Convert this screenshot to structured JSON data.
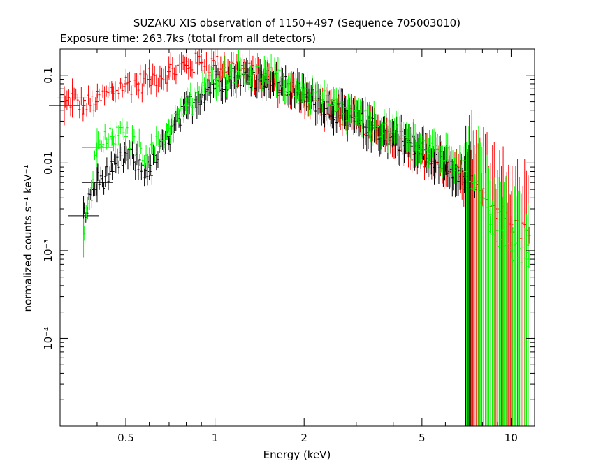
{
  "chart_data": {
    "type": "scatter",
    "title": "SUZAKU XIS observation of 1150+497 (Sequence 705003010)",
    "subtitle": "Exposure time: 263.7ks (total from all detectors)",
    "xlabel": "Energy (keV)",
    "ylabel": "normalized counts s⁻¹ keV⁻¹",
    "x_scale": "log",
    "y_scale": "log",
    "xlim": [
      0.3,
      12
    ],
    "ylim": [
      1e-05,
      0.2
    ],
    "x_ticks": [
      {
        "value": 0.5,
        "label": "0.5"
      },
      {
        "value": 1,
        "label": "1"
      },
      {
        "value": 2,
        "label": "2"
      },
      {
        "value": 5,
        "label": "5"
      },
      {
        "value": 10,
        "label": "10"
      }
    ],
    "y_ticks": [
      {
        "value": 0.1,
        "label": "0.1"
      },
      {
        "value": 0.01,
        "label": "0.01"
      },
      {
        "value": 0.001,
        "label": "10⁻³"
      },
      {
        "value": 0.0001,
        "label": "10⁻⁴"
      }
    ],
    "grid": false,
    "series": [
      {
        "color": "#ff0000",
        "points": [
          [
            0.31,
            0.045
          ],
          [
            0.33,
            0.055
          ],
          [
            0.36,
            0.045
          ],
          [
            0.4,
            0.05
          ],
          [
            0.45,
            0.065
          ],
          [
            0.5,
            0.08
          ],
          [
            0.55,
            0.08
          ],
          [
            0.6,
            0.09
          ],
          [
            0.7,
            0.11
          ],
          [
            0.8,
            0.13
          ],
          [
            0.9,
            0.14
          ],
          [
            1.0,
            0.13
          ],
          [
            1.2,
            0.12
          ],
          [
            1.5,
            0.09
          ],
          [
            2.0,
            0.055
          ],
          [
            2.5,
            0.04
          ],
          [
            3.0,
            0.03
          ],
          [
            4.0,
            0.02
          ],
          [
            5.0,
            0.012
          ],
          [
            6.0,
            0.009
          ],
          [
            7.0,
            0.006
          ],
          [
            8.0,
            0.004
          ],
          [
            9.0,
            0.003
          ],
          [
            10.0,
            0.002
          ],
          [
            11.5,
            0.0015
          ]
        ]
      },
      {
        "color": "#000000",
        "points": [
          [
            0.36,
            0.0025
          ],
          [
            0.4,
            0.006
          ],
          [
            0.45,
            0.008
          ],
          [
            0.5,
            0.012
          ],
          [
            0.6,
            0.008
          ],
          [
            0.7,
            0.02
          ],
          [
            0.8,
            0.04
          ],
          [
            0.9,
            0.06
          ],
          [
            1.0,
            0.08
          ],
          [
            1.2,
            0.1
          ],
          [
            1.5,
            0.09
          ],
          [
            2.0,
            0.06
          ],
          [
            2.5,
            0.04
          ],
          [
            3.0,
            0.03
          ],
          [
            4.0,
            0.02
          ],
          [
            5.0,
            0.014
          ],
          [
            6.0,
            0.01
          ],
          [
            7.0,
            0.007
          ],
          [
            7.5,
            0.005
          ]
        ]
      },
      {
        "color": "#00ff00",
        "points": [
          [
            0.36,
            0.0014
          ],
          [
            0.4,
            0.015
          ],
          [
            0.45,
            0.02
          ],
          [
            0.5,
            0.02
          ],
          [
            0.6,
            0.012
          ],
          [
            0.7,
            0.025
          ],
          [
            0.8,
            0.045
          ],
          [
            0.9,
            0.065
          ],
          [
            1.0,
            0.09
          ],
          [
            1.2,
            0.11
          ],
          [
            1.5,
            0.1
          ],
          [
            2.0,
            0.065
          ],
          [
            2.5,
            0.045
          ],
          [
            3.0,
            0.033
          ],
          [
            4.0,
            0.022
          ],
          [
            5.0,
            0.016
          ],
          [
            6.0,
            0.012
          ],
          [
            7.0,
            0.008
          ],
          [
            7.5,
            0.006
          ],
          [
            8.5,
            0.002
          ],
          [
            10.0,
            0.001
          ],
          [
            11.5,
            0.0008
          ]
        ]
      }
    ]
  }
}
